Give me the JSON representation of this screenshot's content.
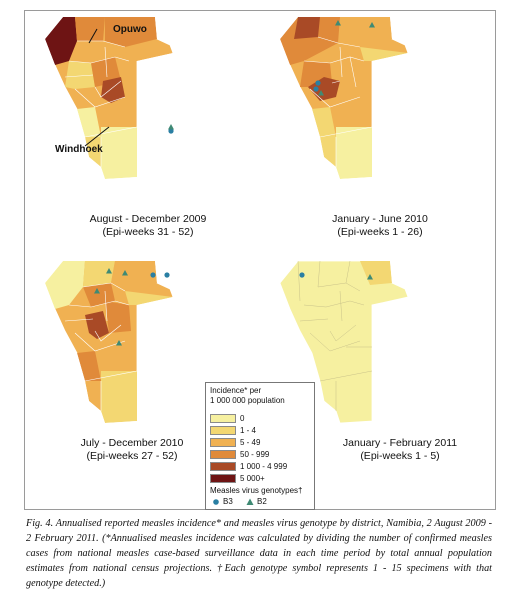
{
  "maps": [
    {
      "title": "August - December 2009",
      "subtitle": "(Epi-weeks 31 - 52)"
    },
    {
      "title": "January - June 2010",
      "subtitle": "(Epi-weeks 1 - 26)"
    },
    {
      "title": "July - December 2010",
      "subtitle": "(Epi-weeks 27 - 52)"
    },
    {
      "title": "January - February 2011",
      "subtitle": "(Epi-weeks 1 - 5)"
    }
  ],
  "callouts": {
    "opuwo": "Opuwo",
    "windhoek": "Windhoek"
  },
  "legend": {
    "title_line1": "Incidence* per",
    "title_line2": "1 000 000 population",
    "classes": [
      {
        "label": "0",
        "color": "#f6f0a0"
      },
      {
        "label": "1 - 4",
        "color": "#f3d772"
      },
      {
        "label": "5 - 49",
        "color": "#f0b152"
      },
      {
        "label": "50 - 999",
        "color": "#e08a3a"
      },
      {
        "label": "1 000 - 4 999",
        "color": "#a94a26"
      },
      {
        "label": "5 000+",
        "color": "#6e1414"
      }
    ],
    "genotypes_title": "Measles virus genotypes†",
    "genotypes": [
      {
        "label": "B3",
        "symbol": "circle",
        "color": "#2a7fa3"
      },
      {
        "label": "B2",
        "symbol": "triangle",
        "color": "#3f8a74"
      }
    ]
  },
  "caption": "Fig. 4. Annualised reported measles incidence* and measles virus genotype by district, Namibia, 2 August 2009 - 2 February 2011. (*Annualised measles incidence was calculated by dividing the number of confirmed measles cases from national measles case-based surveillance data in each time period by total annual population estimates from national census projections. †Each genotype symbol represents 1 - 15 specimens with that genotype detected.)"
}
